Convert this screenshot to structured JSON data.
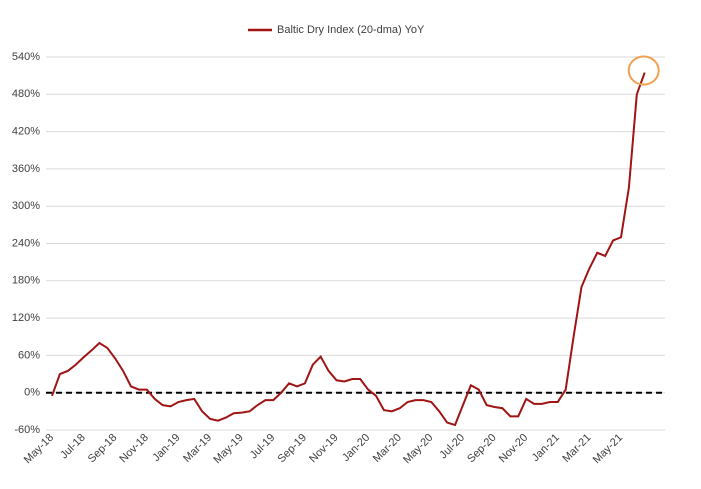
{
  "chart_data": {
    "type": "line",
    "categories": [
      "May-18",
      null,
      null,
      null,
      "Jul-18",
      null,
      null,
      null,
      "Sep-18",
      null,
      null,
      null,
      "Nov-18",
      null,
      null,
      null,
      "Jan-19",
      null,
      null,
      null,
      "Mar-19",
      null,
      null,
      null,
      "May-19",
      null,
      null,
      null,
      "Jul-19",
      null,
      null,
      null,
      "Sep-19",
      null,
      null,
      null,
      "Nov-19",
      null,
      null,
      null,
      "Jan-20",
      null,
      null,
      null,
      "Mar-20",
      null,
      null,
      null,
      "May-20",
      null,
      null,
      null,
      "Jul-20",
      null,
      null,
      null,
      "Sep-20",
      null,
      null,
      null,
      "Nov-20",
      null,
      null,
      null,
      "Jan-21",
      null,
      null,
      null,
      "Mar-21",
      null,
      null,
      null,
      "May-21",
      null,
      null,
      null
    ],
    "series": [
      {
        "name": "Baltic Dry Index (20-dma) YoY",
        "color": "#a01414",
        "values": [
          -5,
          30,
          35,
          45,
          57,
          68,
          80,
          72,
          55,
          35,
          10,
          5,
          5,
          -10,
          -20,
          -22,
          -15,
          -12,
          -10,
          -30,
          -42,
          -45,
          -40,
          -33,
          -32,
          -30,
          -20,
          -12,
          -12,
          0,
          15,
          10,
          15,
          45,
          58,
          35,
          20,
          18,
          22,
          22,
          5,
          -5,
          -28,
          -30,
          -25,
          -15,
          -12,
          -12,
          -15,
          -30,
          -48,
          -52,
          -20,
          12,
          5,
          -20,
          -23,
          -25,
          -38,
          -38,
          -10,
          -18,
          -18,
          -15,
          -15,
          5,
          90,
          170,
          200,
          225,
          220,
          245,
          250,
          330,
          480,
          515
        ]
      }
    ],
    "ylim": [
      -60,
      540
    ],
    "yticks": [
      {
        "value": -60,
        "label": "-60%"
      },
      {
        "value": 0,
        "label": "0%"
      },
      {
        "value": 60,
        "label": "60%"
      },
      {
        "value": 120,
        "label": "120%"
      },
      {
        "value": 180,
        "label": "180%"
      },
      {
        "value": 240,
        "label": "240%"
      },
      {
        "value": 300,
        "label": "300%"
      },
      {
        "value": 360,
        "label": "360%"
      },
      {
        "value": 420,
        "label": "420%"
      },
      {
        "value": 480,
        "label": "480%"
      },
      {
        "value": 540,
        "label": "540%"
      }
    ],
    "grid": true
  }
}
